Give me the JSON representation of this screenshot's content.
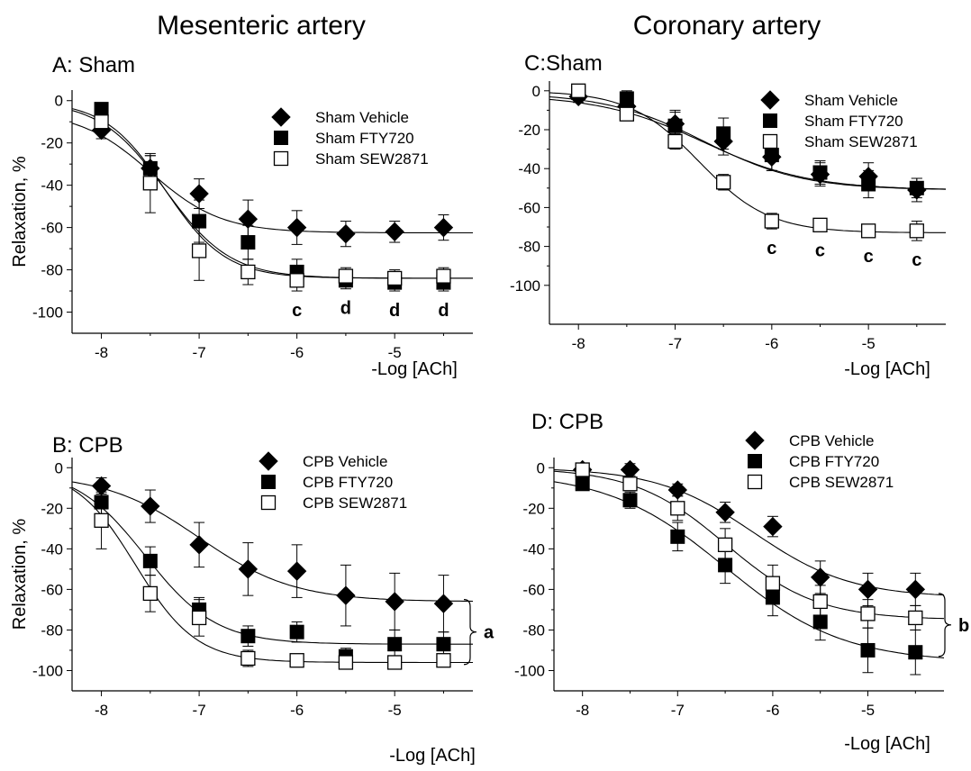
{
  "figure": {
    "column_titles": [
      "Mesenteric artery",
      "Coronary artery"
    ]
  },
  "chart_data": [
    {
      "id": "A",
      "type": "scatter",
      "title": "A: Sham",
      "xlabel": "-Log [ACh]",
      "ylabel": "Relaxation, %",
      "xlim": [
        -8.3,
        -4.2
      ],
      "ylim": [
        -110,
        5
      ],
      "xticks": [
        -8,
        -7,
        -6,
        -5
      ],
      "yticks": [
        0,
        -20,
        -40,
        -60,
        -80,
        -100
      ],
      "legend_position": "top-right",
      "x": [
        -8,
        -7.5,
        -7,
        -6.5,
        -6,
        -5.5,
        -5,
        -4.5
      ],
      "series": [
        {
          "name": "Sham Vehicle",
          "marker": "diamond",
          "values": [
            -14,
            -32,
            -44,
            -56,
            -60,
            -63,
            -62,
            -60
          ],
          "errors": [
            4,
            6,
            7,
            9,
            8,
            6,
            5,
            6
          ],
          "fit": {
            "bottom": -62.5,
            "top": -5,
            "logec50": -7.5,
            "hill": 1.2
          }
        },
        {
          "name": "Sham FTY720",
          "marker": "filled-square",
          "values": [
            -4,
            -32,
            -57,
            -67,
            -81,
            -85,
            -86,
            -86
          ],
          "errors": [
            3,
            6,
            10,
            8,
            6,
            4,
            4,
            4
          ],
          "fit": {
            "bottom": -84,
            "top": 0,
            "logec50": -7.35,
            "hill": 1.3
          }
        },
        {
          "name": "Sham SEW2871",
          "marker": "open-square",
          "values": [
            -10,
            -39,
            -71,
            -81,
            -85,
            -83,
            -84,
            -83
          ],
          "errors": [
            4,
            14,
            14,
            6,
            5,
            4,
            4,
            4
          ],
          "fit": {
            "bottom": -84,
            "top": 0,
            "logec50": -7.35,
            "hill": 1.4
          }
        }
      ],
      "annotations": [
        {
          "x": -6,
          "label": "c"
        },
        {
          "x": -5.5,
          "label": "d"
        },
        {
          "x": -5,
          "label": "d"
        },
        {
          "x": -4.5,
          "label": "d"
        }
      ]
    },
    {
      "id": "B",
      "type": "scatter",
      "title": "B: CPB",
      "xlabel": "-Log [ACh]",
      "ylabel": "Relaxation, %",
      "xlim": [
        -8.3,
        -4.2
      ],
      "ylim": [
        -110,
        5
      ],
      "xticks": [
        -8,
        -7,
        -6,
        -5
      ],
      "yticks": [
        0,
        -20,
        -40,
        -60,
        -80,
        -100
      ],
      "legend_position": "top-right",
      "x": [
        -8,
        -7.5,
        -7,
        -6.5,
        -6,
        -5.5,
        -5,
        -4.5
      ],
      "series": [
        {
          "name": "CPB Vehicle",
          "marker": "diamond",
          "values": [
            -9,
            -19,
            -38,
            -50,
            -51,
            -63,
            -66,
            -67
          ],
          "errors": [
            4,
            8,
            11,
            13,
            13,
            15,
            14,
            14
          ],
          "fit": {
            "bottom": -66,
            "top": -3,
            "logec50": -7,
            "hill": 0.9
          }
        },
        {
          "name": "CPB FTY720",
          "marker": "filled-square",
          "values": [
            -17,
            -46,
            -70,
            -83,
            -81,
            -93,
            -87,
            -87
          ],
          "errors": [
            6,
            7,
            6,
            5,
            5,
            4,
            7,
            6
          ],
          "fit": {
            "bottom": -87,
            "top": 0,
            "logec50": -7.55,
            "hill": 1.2
          }
        },
        {
          "name": "CPB SEW2871",
          "marker": "open-square",
          "values": [
            -26,
            -62,
            -74,
            -94,
            -95,
            -96,
            -96,
            -95
          ],
          "errors": [
            14,
            9,
            9,
            4,
            3,
            3,
            3,
            3
          ],
          "fit": {
            "bottom": -96,
            "top": 0,
            "logec50": -7.65,
            "hill": 1.4
          }
        }
      ],
      "bracket": {
        "label": "a",
        "y_top": -65,
        "y_bottom": -97
      }
    },
    {
      "id": "C",
      "type": "scatter",
      "title": "C:Sham",
      "xlabel": "-Log [ACh]",
      "ylabel": "",
      "xlim": [
        -8.3,
        -4.2
      ],
      "ylim": [
        -120,
        5
      ],
      "xticks": [
        -8,
        -7,
        -6,
        -5
      ],
      "yticks": [
        0,
        -20,
        -40,
        -60,
        -80,
        -100
      ],
      "legend_position": "top-right",
      "x": [
        -8,
        -7.5,
        -7,
        -6.5,
        -6,
        -5.5,
        -5,
        -4.5
      ],
      "series": [
        {
          "name": "Sham Vehicle",
          "marker": "diamond",
          "values": [
            -3,
            -8,
            -17,
            -26,
            -34,
            -43,
            -44,
            -51
          ],
          "errors": [
            3,
            4,
            7,
            7,
            7,
            6,
            7,
            6
          ],
          "fit": {
            "bottom": -51,
            "top": -2,
            "logec50": -6.7,
            "hill": 0.8
          }
        },
        {
          "name": "Sham FTY720",
          "marker": "filled-square",
          "values": [
            -1,
            -4,
            -18,
            -22,
            -33,
            -42,
            -48,
            -50
          ],
          "errors": [
            3,
            4,
            7,
            8,
            8,
            6,
            7,
            5
          ],
          "fit": {
            "bottom": -51,
            "top": -1,
            "logec50": -6.7,
            "hill": 0.85
          }
        },
        {
          "name": "Sham SEW2871",
          "marker": "open-square",
          "values": [
            0,
            -12,
            -26,
            -47,
            -67,
            -69,
            -72,
            -72
          ],
          "errors": [
            2,
            3,
            4,
            4,
            4,
            3,
            3,
            5
          ],
          "fit": {
            "bottom": -73,
            "top": 0,
            "logec50": -6.75,
            "hill": 1.2
          }
        }
      ],
      "annotations": [
        {
          "x": -6,
          "label": "c"
        },
        {
          "x": -5.5,
          "label": "c"
        },
        {
          "x": -5,
          "label": "c"
        },
        {
          "x": -4.5,
          "label": "c"
        }
      ]
    },
    {
      "id": "D",
      "type": "scatter",
      "title": "D: CPB",
      "xlabel": "-Log [ACh]",
      "ylabel": "",
      "xlim": [
        -8.3,
        -4.2
      ],
      "ylim": [
        -110,
        5
      ],
      "xticks": [
        -8,
        -7,
        -6,
        -5
      ],
      "yticks": [
        0,
        -20,
        -40,
        -60,
        -80,
        -100
      ],
      "legend_position": "top-right",
      "x": [
        -8,
        -7.5,
        -7,
        -6.5,
        -6,
        -5.5,
        -5,
        -4.5
      ],
      "series": [
        {
          "name": "CPB Vehicle",
          "marker": "diamond",
          "values": [
            -1,
            -1,
            -11,
            -22,
            -29,
            -54,
            -60,
            -60
          ],
          "errors": [
            2,
            3,
            3,
            5,
            5,
            8,
            8,
            8
          ],
          "fit": {
            "bottom": -64,
            "top": 0,
            "logec50": -6.2,
            "hill": 0.85
          }
        },
        {
          "name": "CPB FTY720",
          "marker": "filled-square",
          "values": [
            -8,
            -16,
            -34,
            -48,
            -64,
            -76,
            -90,
            -91
          ],
          "errors": [
            2,
            4,
            7,
            9,
            9,
            9,
            11,
            11
          ],
          "fit": {
            "bottom": -96,
            "top": -2,
            "logec50": -6.5,
            "hill": 0.7
          }
        },
        {
          "name": "CPB SEW2871",
          "marker": "open-square",
          "values": [
            -1,
            -8,
            -20,
            -38,
            -57,
            -66,
            -72,
            -74
          ],
          "errors": [
            2,
            3,
            6,
            8,
            9,
            8,
            7,
            6
          ],
          "fit": {
            "bottom": -75,
            "top": 0,
            "logec50": -6.5,
            "hill": 0.9
          }
        }
      ],
      "bracket": {
        "label": "b",
        "y_top": -62,
        "y_bottom": -93
      }
    }
  ]
}
